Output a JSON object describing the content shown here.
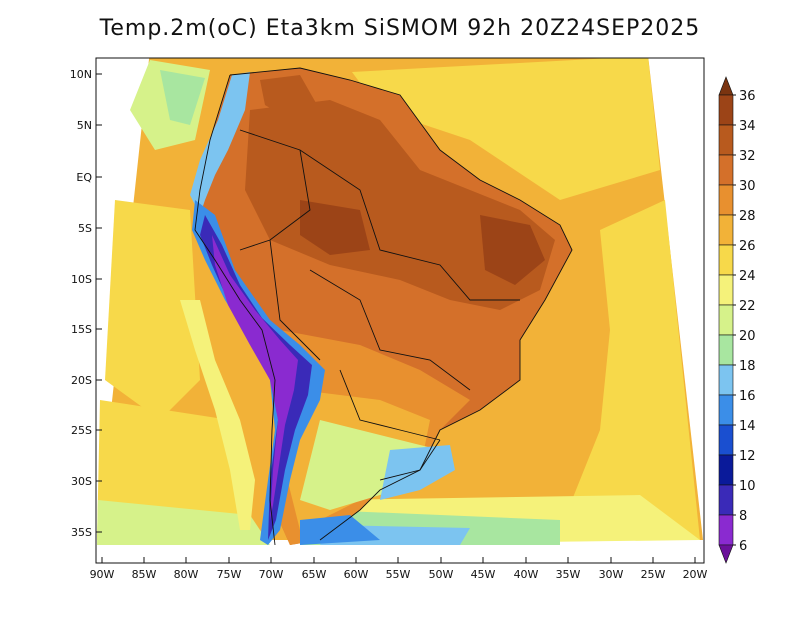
{
  "title": "Temp.2m(oC) Eta3km SiSMOM 92h 20Z24SEP2025",
  "lat_labels": [
    "10N",
    "5N",
    "EQ",
    "5S",
    "10S",
    "15S",
    "20S",
    "25S",
    "30S",
    "35S"
  ],
  "lon_labels": [
    "90W",
    "85W",
    "80W",
    "75W",
    "70W",
    "65W",
    "60W",
    "55W",
    "50W",
    "45W",
    "40W",
    "35W",
    "30W",
    "25W",
    "20W"
  ],
  "colorbar": {
    "labels": [
      "36",
      "34",
      "32",
      "30",
      "28",
      "26",
      "24",
      "22",
      "20",
      "18",
      "16",
      "14",
      "12",
      "10",
      "8",
      "6"
    ],
    "colors": [
      "#7a3410",
      "#9c4417",
      "#b85a1e",
      "#d4702a",
      "#e8902f",
      "#f2b238",
      "#f7d94a",
      "#f5f27a",
      "#d6f28a",
      "#a8e6a0",
      "#7cc4f0",
      "#3b8ee8",
      "#1a4fd0",
      "#0a1a9a",
      "#3a2ab8",
      "#8a2ad0",
      "#6a109a"
    ]
  },
  "field_colors": {
    "ocean_warm": "#f2b238",
    "ocean_mild": "#f7d94a",
    "ocean_cool": "#f5f27a",
    "hot": "#d4702a",
    "very_hot": "#b85a1e",
    "hottest": "#9c4417",
    "cool_land": "#d6f28a",
    "cold": "#7cc4f0",
    "andes_cold": "#3b8ee8",
    "andes_coldest": "#3a2ab8"
  }
}
